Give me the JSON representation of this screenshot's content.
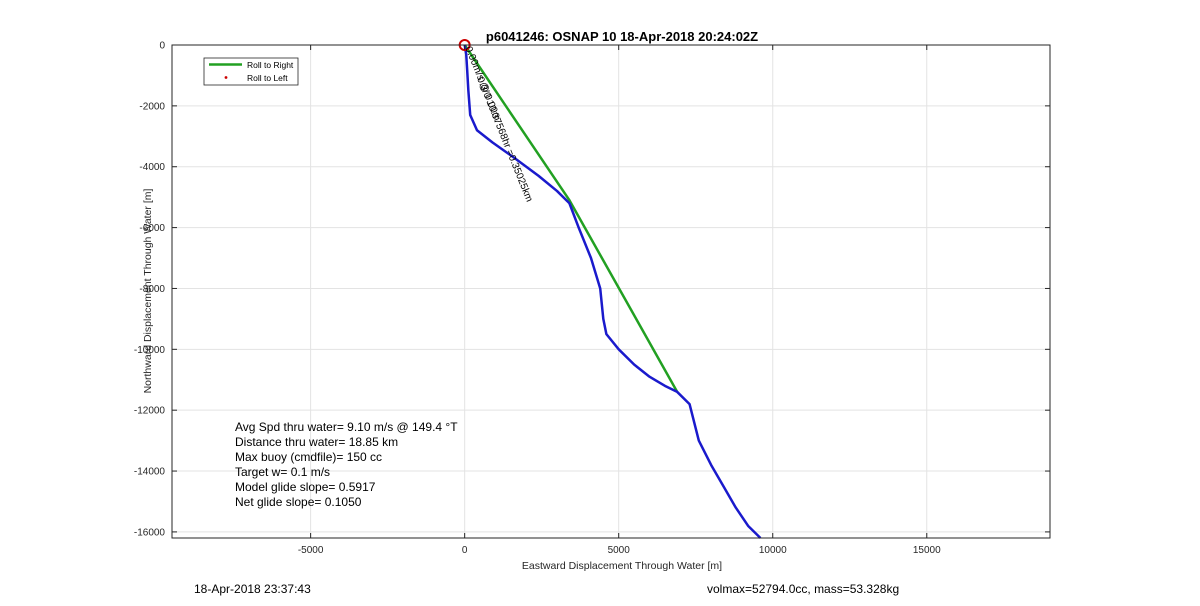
{
  "chart_data": {
    "type": "line",
    "title": "p6041246: OSNAP 10 18-Apr-2018 20:24:02Z",
    "xlabel": "Eastward Displacement Through Water [m]",
    "ylabel": "Northward Displacement Through Water [m]",
    "xlim": [
      -9500,
      19000
    ],
    "ylim": [
      -16200,
      0
    ],
    "xticks": [
      -5000,
      0,
      5000,
      10000,
      15000
    ],
    "yticks": [
      0,
      -2000,
      -4000,
      -6000,
      -8000,
      -10000,
      -12000,
      -14000,
      -16000
    ],
    "grid": true,
    "legend": {
      "position": "top-left",
      "entries": [
        {
          "label": "Roll to Right",
          "color": "#22a022",
          "style": "line"
        },
        {
          "label": "Roll to Left",
          "color": "#cc0000",
          "style": "dot"
        }
      ]
    },
    "series": [
      {
        "name": "Roll to Right",
        "color": "#22a022",
        "x": [
          0,
          3400,
          6900
        ],
        "y": [
          0,
          -5100,
          -11400
        ]
      },
      {
        "color": "#1a1acc",
        "x": [
          0,
          50,
          80,
          120,
          180,
          400,
          900,
          1600,
          2400,
          3000,
          3400,
          3700,
          4100,
          4400,
          4500,
          4600,
          5000,
          5500,
          6000,
          6500,
          6900,
          7300,
          7600,
          8000,
          8400,
          8800,
          9200,
          9600
        ],
        "y": [
          0,
          -300,
          -800,
          -1500,
          -2300,
          -2800,
          -3200,
          -3700,
          -4300,
          -4800,
          -5200,
          -6000,
          -7000,
          -8000,
          -9000,
          -9500,
          -10000,
          -10500,
          -10900,
          -11200,
          -11400,
          -11800,
          -13000,
          -13800,
          -14500,
          -15200,
          -15800,
          -16200
        ]
      },
      {
        "color": "#cc0000",
        "x": [
          0
        ],
        "y": [
          0
        ]
      }
    ],
    "annotations": [
      {
        "text": "0.00m/s @ 0.00m",
        "x": 20,
        "y": -100,
        "rotation": 68
      },
      {
        "text": "0.3/0 10.37568hr =0.35025km",
        "x": 400,
        "y": -1100,
        "rotation": 68
      }
    ],
    "info": [
      "Avg Spd thru water=  9.10 m/s @ 149.4 °T",
      "Distance thru water= 18.85 km",
      "Max buoy (cmdfile)= 150 cc",
      "Target w= 0.1 m/s",
      "Model glide slope= 0.5917",
      "Net glide slope= 0.1050"
    ]
  },
  "footer": {
    "left": "18-Apr-2018 23:37:43",
    "right": "volmax=52794.0cc, mass=53.328kg"
  }
}
